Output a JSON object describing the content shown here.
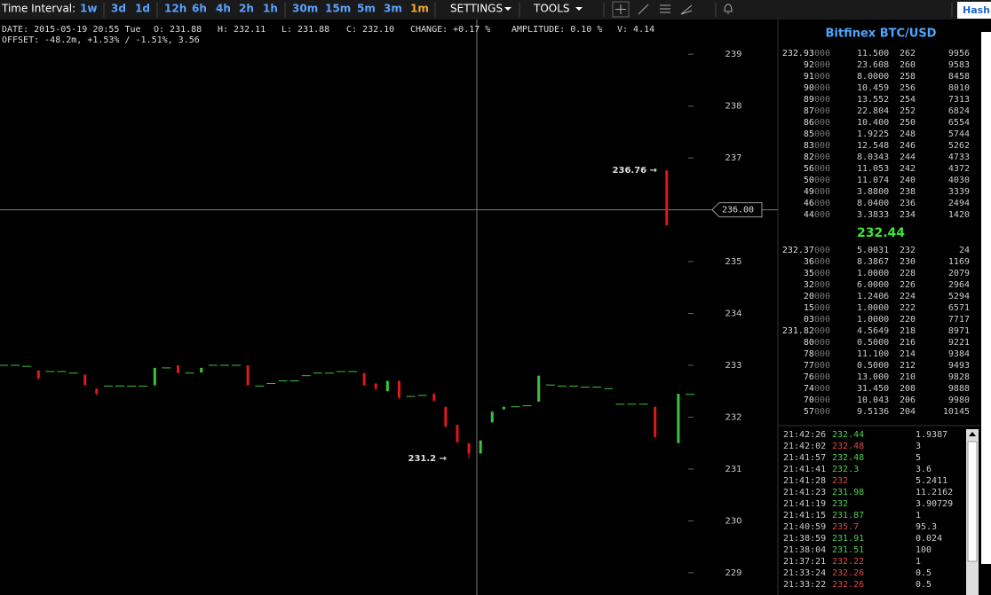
{
  "toolbar": {
    "label": "Time Interval:",
    "intervals": [
      {
        "label": "1w",
        "color": "#5aa0ff"
      },
      {
        "label": "3d",
        "color": "#5aa0ff"
      },
      {
        "label": "1d",
        "color": "#5aa0ff"
      },
      {
        "label": "12h",
        "color": "#5aa0ff"
      },
      {
        "label": "6h",
        "color": "#5aa0ff"
      },
      {
        "label": "4h",
        "color": "#5aa0ff"
      },
      {
        "label": "2h",
        "color": "#5aa0ff"
      },
      {
        "label": "1h",
        "color": "#5aa0ff"
      },
      {
        "label": "30m",
        "color": "#5aa0ff"
      },
      {
        "label": "15m",
        "color": "#5aa0ff"
      },
      {
        "label": "5m",
        "color": "#5aa0ff"
      },
      {
        "label": "3m",
        "color": "#5aa0ff"
      },
      {
        "label": "1m",
        "color": "#f0a830"
      }
    ],
    "settings": "SETTINGS",
    "tools": "TOOLS",
    "hash": "Hash"
  },
  "info": {
    "line1": [
      "DATE: 2015-05-19 20:55 Tue",
      "O: 231.88",
      "H: 232.11",
      "L: 231.88",
      "C: 232.10",
      "CHANGE: +0.17 %",
      "AMPLITUDE: 0.10 %",
      "V: 4.14"
    ],
    "line2": "OFFSET: -48.2m, +1.53% / -1.51%, 3.56"
  },
  "chart": {
    "ylim": [
      228.57,
      239.67
    ],
    "yticks": [
      229,
      230,
      231,
      232,
      233,
      234,
      235,
      236,
      237,
      238,
      239
    ],
    "up_color": "#3cc43c",
    "down_color": "#e01818",
    "crosshair": {
      "value": 236,
      "label": "236.00"
    },
    "annotations": [
      {
        "value": 236.76,
        "label": "236.76 →"
      },
      {
        "value": 231.2,
        "label": "231.2 →"
      }
    ],
    "candles": [
      [
        233.0,
        233.0,
        233.0,
        233.0
      ],
      [
        233.0,
        233.0,
        233.0,
        233.0
      ],
      [
        232.98,
        232.98,
        232.98,
        232.98
      ],
      [
        232.9,
        232.9,
        232.72,
        232.75
      ],
      [
        232.88,
        232.88,
        232.88,
        232.88
      ],
      [
        232.88,
        232.88,
        232.88,
        232.88
      ],
      [
        232.85,
        232.85,
        232.85,
        232.85
      ],
      [
        232.82,
        232.82,
        232.6,
        232.62
      ],
      [
        232.55,
        232.55,
        232.42,
        232.45
      ],
      [
        232.6,
        232.6,
        232.6,
        232.6
      ],
      [
        232.6,
        232.6,
        232.6,
        232.6
      ],
      [
        232.6,
        232.6,
        232.6,
        232.6
      ],
      [
        232.6,
        232.6,
        232.6,
        232.6
      ],
      [
        232.62,
        232.95,
        232.6,
        232.95
      ],
      [
        232.95,
        232.95,
        232.95,
        232.95
      ],
      [
        233.0,
        233.0,
        232.85,
        232.85
      ],
      [
        232.85,
        232.85,
        232.85,
        232.85
      ],
      [
        232.86,
        232.95,
        232.86,
        232.95
      ],
      [
        233.0,
        233.0,
        233.0,
        233.0
      ],
      [
        233.0,
        233.0,
        233.0,
        233.0
      ],
      [
        233.0,
        233.0,
        233.0,
        233.0
      ],
      [
        233.0,
        233.0,
        232.6,
        232.62
      ],
      [
        232.6,
        232.6,
        232.6,
        232.6
      ],
      [
        232.65,
        232.65,
        232.65,
        232.65
      ],
      [
        232.7,
        232.7,
        232.7,
        232.7
      ],
      [
        232.7,
        232.7,
        232.7,
        232.7
      ],
      [
        232.8,
        232.8,
        232.8,
        232.8
      ],
      [
        232.85,
        232.85,
        232.85,
        232.85
      ],
      [
        232.85,
        232.85,
        232.85,
        232.85
      ],
      [
        232.88,
        232.88,
        232.88,
        232.88
      ],
      [
        232.88,
        232.88,
        232.88,
        232.88
      ],
      [
        232.85,
        232.85,
        232.6,
        232.62
      ],
      [
        232.65,
        232.65,
        232.52,
        232.55
      ],
      [
        232.5,
        232.7,
        232.5,
        232.7
      ],
      [
        232.7,
        232.7,
        232.35,
        232.38
      ],
      [
        232.4,
        232.4,
        232.4,
        232.4
      ],
      [
        232.42,
        232.42,
        232.42,
        232.42
      ],
      [
        232.45,
        232.45,
        232.3,
        232.32
      ],
      [
        232.2,
        232.2,
        231.8,
        231.82
      ],
      [
        231.85,
        231.85,
        231.5,
        231.52
      ],
      [
        231.5,
        231.5,
        231.2,
        231.3
      ],
      [
        231.3,
        231.55,
        231.3,
        231.55
      ],
      [
        231.9,
        232.12,
        231.9,
        232.1
      ],
      [
        232.15,
        232.2,
        232.15,
        232.2
      ],
      [
        232.2,
        232.2,
        232.2,
        232.2
      ],
      [
        232.22,
        232.22,
        232.22,
        232.22
      ],
      [
        232.3,
        232.8,
        232.3,
        232.8
      ],
      [
        232.62,
        232.62,
        232.62,
        232.62
      ],
      [
        232.6,
        232.6,
        232.6,
        232.6
      ],
      [
        232.6,
        232.6,
        232.6,
        232.6
      ],
      [
        232.58,
        232.58,
        232.58,
        232.58
      ],
      [
        232.58,
        232.58,
        232.58,
        232.58
      ],
      [
        232.55,
        232.55,
        232.55,
        232.55
      ],
      [
        232.25,
        232.25,
        232.25,
        232.25
      ],
      [
        232.25,
        232.25,
        232.25,
        232.25
      ],
      [
        232.25,
        232.25,
        232.25,
        232.25
      ],
      [
        232.2,
        232.2,
        231.6,
        231.62
      ],
      [
        236.76,
        236.76,
        235.7,
        235.7
      ],
      [
        231.5,
        232.45,
        231.5,
        232.45
      ],
      [
        232.44,
        232.44,
        232.44,
        232.44
      ]
    ]
  },
  "orderbook": {
    "title": "Bitfinex BTC/USD",
    "last": "232.44",
    "asks": [
      [
        "232.93000",
        "11.500",
        "262",
        "9956"
      ],
      [
        "92000",
        "23.608",
        "260",
        "9583"
      ],
      [
        "91000",
        "8.0000",
        "258",
        "8458"
      ],
      [
        "90000",
        "10.459",
        "256",
        "8010"
      ],
      [
        "89000",
        "13.552",
        "254",
        "7313"
      ],
      [
        "87000",
        "22.804",
        "252",
        "6824"
      ],
      [
        "86000",
        "10.400",
        "250",
        "6554"
      ],
      [
        "85000",
        "1.9225",
        "248",
        "5744"
      ],
      [
        "83000",
        "12.548",
        "246",
        "5262"
      ],
      [
        "82000",
        "8.0343",
        "244",
        "4733"
      ],
      [
        "56000",
        "11.053",
        "242",
        "4372"
      ],
      [
        "50000",
        "11.074",
        "240",
        "4030"
      ],
      [
        "49000",
        "3.8800",
        "238",
        "3339"
      ],
      [
        "46000",
        "8.0400",
        "236",
        "2494"
      ],
      [
        "44000",
        "3.3833",
        "234",
        "1420"
      ]
    ],
    "bids": [
      [
        "232.37000",
        "5.0031",
        "232",
        "24"
      ],
      [
        "36000",
        "8.3867",
        "230",
        "1169"
      ],
      [
        "35000",
        "1.0000",
        "228",
        "2079"
      ],
      [
        "32000",
        "6.0000",
        "226",
        "2964"
      ],
      [
        "20000",
        "1.2406",
        "224",
        "5294"
      ],
      [
        "15000",
        "1.0000",
        "222",
        "6571"
      ],
      [
        "03000",
        "1.0000",
        "220",
        "7717"
      ],
      [
        "231.82000",
        "4.5649",
        "218",
        "8971"
      ],
      [
        "80000",
        "0.5000",
        "216",
        "9221"
      ],
      [
        "78000",
        "11.100",
        "214",
        "9384"
      ],
      [
        "77000",
        "0.5000",
        "212",
        "9493"
      ],
      [
        "76000",
        "13.000",
        "210",
        "9828"
      ],
      [
        "74000",
        "31.450",
        "208",
        "9888"
      ],
      [
        "70000",
        "10.043",
        "206",
        "9980"
      ],
      [
        "57000",
        "9.5136",
        "204",
        "10145"
      ]
    ]
  },
  "trades": [
    {
      "time": "21:42:26",
      "price": "232.44",
      "amount": "1.9387",
      "color": "#4fd04f"
    },
    {
      "time": "21:42:02",
      "price": "232.48",
      "amount": "3",
      "color": "#e04848"
    },
    {
      "time": "21:41:57",
      "price": "232.48",
      "amount": "5",
      "color": "#4fd04f"
    },
    {
      "time": "21:41:41",
      "price": "232.3",
      "amount": "3.6",
      "color": "#4fd04f"
    },
    {
      "time": "21:41:28",
      "price": "232",
      "amount": "5.2411",
      "color": "#e04848"
    },
    {
      "time": "21:41:23",
      "price": "231.98",
      "amount": "11.2162",
      "color": "#4fd04f"
    },
    {
      "time": "21:41:19",
      "price": "232",
      "amount": "3.90729",
      "color": "#4fd04f"
    },
    {
      "time": "21:41:15",
      "price": "231.87",
      "amount": "1",
      "color": "#4fd04f"
    },
    {
      "time": "21:40:59",
      "price": "235.7",
      "amount": "95.3",
      "color": "#e04848"
    },
    {
      "time": "21:38:59",
      "price": "231.91",
      "amount": "0.024",
      "color": "#4fd04f"
    },
    {
      "time": "21:38:04",
      "price": "231.51",
      "amount": "100",
      "color": "#4fd04f"
    },
    {
      "time": "21:37:21",
      "price": "232.22",
      "amount": "1",
      "color": "#e04848"
    },
    {
      "time": "21:33:24",
      "price": "232.26",
      "amount": "0.5",
      "color": "#e04848"
    },
    {
      "time": "21:33:22",
      "price": "232.26",
      "amount": "0.5",
      "color": "#e04848"
    }
  ]
}
